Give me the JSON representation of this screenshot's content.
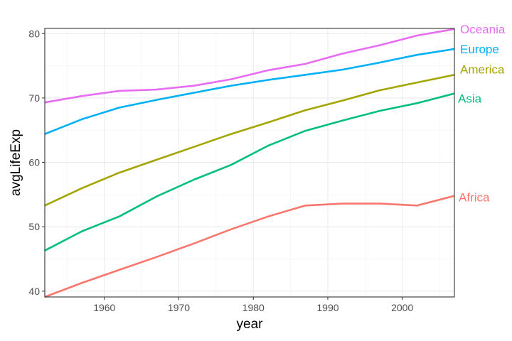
{
  "chart_data": {
    "type": "line",
    "xlabel": "year",
    "ylabel": "avgLifeExp",
    "xlim": [
      1952,
      2007
    ],
    "ylim": [
      39.1,
      80.8
    ],
    "x_ticks": [
      1960,
      1970,
      1980,
      1990,
      2000
    ],
    "y_ticks": [
      40,
      50,
      60,
      70,
      80
    ],
    "grid": true,
    "legend": "direct labels at line ends (right)",
    "x": [
      1952,
      1957,
      1962,
      1967,
      1972,
      1977,
      1982,
      1987,
      1992,
      1997,
      2002,
      2007
    ],
    "series": [
      {
        "name": "Africa",
        "color": "#f8766d",
        "values": [
          39.1,
          41.3,
          43.3,
          45.3,
          47.4,
          49.6,
          51.6,
          53.3,
          53.6,
          53.6,
          53.3,
          54.8
        ]
      },
      {
        "name": "America",
        "color": "#a3a500",
        "values": [
          53.3,
          56.0,
          58.4,
          60.4,
          62.4,
          64.4,
          66.2,
          68.1,
          69.6,
          71.2,
          72.4,
          73.6
        ]
      },
      {
        "name": "Asia",
        "color": "#00bf7d",
        "values": [
          46.3,
          49.3,
          51.6,
          54.7,
          57.3,
          59.6,
          62.6,
          64.9,
          66.5,
          68.0,
          69.2,
          70.7
        ]
      },
      {
        "name": "Europe",
        "color": "#00b0f6",
        "values": [
          64.4,
          66.7,
          68.5,
          69.7,
          70.8,
          71.9,
          72.8,
          73.6,
          74.4,
          75.5,
          76.7,
          77.6
        ]
      },
      {
        "name": "Oceania",
        "color": "#e76bf3",
        "values": [
          69.3,
          70.3,
          71.1,
          71.3,
          71.9,
          72.9,
          74.3,
          75.3,
          76.9,
          78.2,
          79.7,
          80.7
        ]
      }
    ]
  }
}
